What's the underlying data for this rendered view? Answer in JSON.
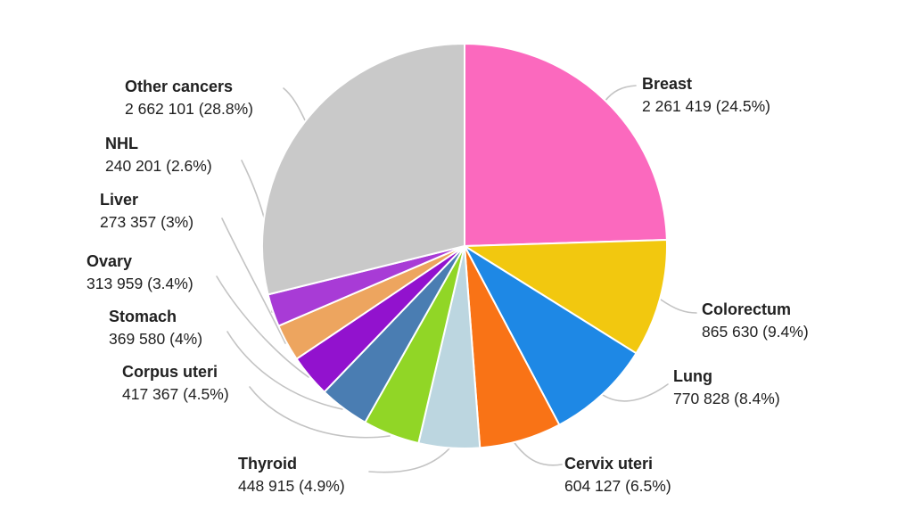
{
  "chart_data": {
    "type": "pie",
    "title": "",
    "legend_position": "callout-labels",
    "start_angle_deg": 0,
    "direction": "clockwise",
    "total": 9227484,
    "background_color": "#ffffff",
    "leader_line_color": "#c3c3c3",
    "text_color": "#212121",
    "categories": [
      "Breast",
      "Colorectum",
      "Lung",
      "Cervix uteri",
      "Thyroid",
      "Corpus uteri",
      "Stomach",
      "Ovary",
      "Liver",
      "NHL",
      "Other cancers"
    ],
    "values": [
      2261419,
      865630,
      770828,
      604127,
      448915,
      417367,
      369580,
      313959,
      273357,
      240201,
      2662101
    ],
    "percentages": [
      24.5,
      9.4,
      8.4,
      6.5,
      4.9,
      4.5,
      4.0,
      3.4,
      3.0,
      2.6,
      28.8
    ],
    "labels_display": [
      "2 261 419 (24.5%)",
      "865 630 (9.4%)",
      "770 828 (8.4%)",
      "604 127 (6.5%)",
      "448 915 (4.9%)",
      "417 367 (4.5%)",
      "369 580 (4%)",
      "313 959 (3.4%)",
      "273 357 (3%)",
      "240 201 (2.6%)",
      "2 662 101 (28.8%)"
    ],
    "colors": [
      "#FB69BE",
      "#F2C80F",
      "#1E88E5",
      "#F97316",
      "#BCD6E0",
      "#91D626",
      "#4A7DB2",
      "#9212CE",
      "#EDA55F",
      "#A83BD6",
      "#C9C9C9"
    ]
  }
}
